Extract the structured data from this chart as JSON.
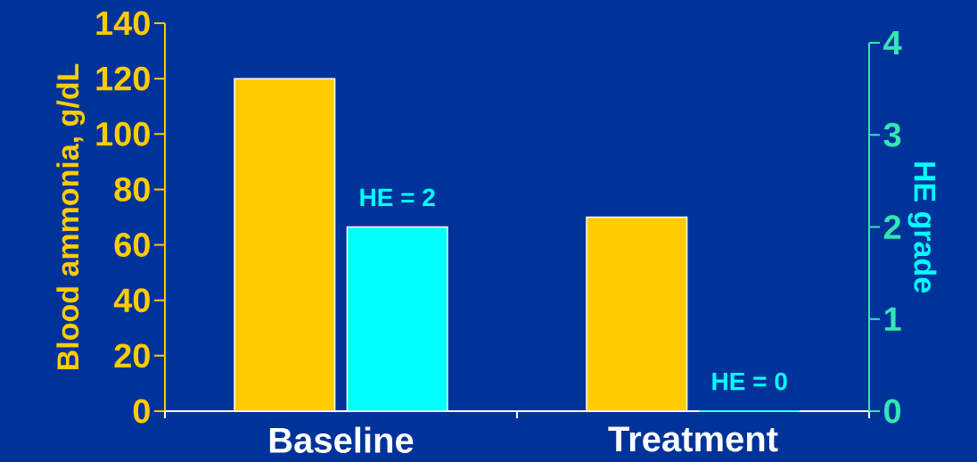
{
  "chart_data": {
    "type": "bar",
    "categories": [
      "Baseline",
      "Treatment"
    ],
    "ylabel": "Blood ammonia, g/dL",
    "y2label": "HE grade",
    "ylim": [
      0,
      140
    ],
    "yticks": [
      0,
      20,
      40,
      60,
      80,
      100,
      120,
      140
    ],
    "y2lim": [
      0,
      4
    ],
    "y2ticks": [
      0,
      1,
      2,
      3,
      4
    ],
    "series": [
      {
        "color": "#ffcc00",
        "values": [
          120,
          70
        ]
      },
      {
        "color": "#00ffff",
        "values": [
          2,
          0
        ],
        "axis": "y2",
        "value_labels": [
          "HE = 2",
          "HE = 0"
        ]
      }
    ]
  }
}
